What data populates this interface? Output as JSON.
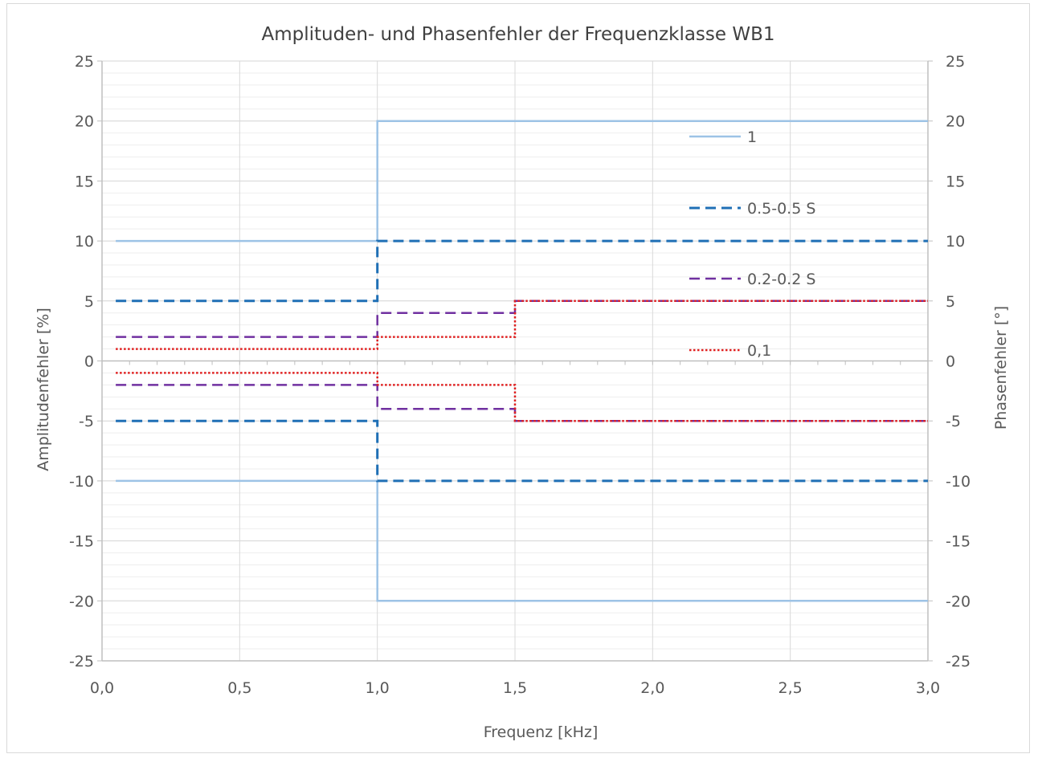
{
  "chart_data": {
    "type": "line",
    "title": "Amplituden- und Phasenfehler der Frequenzklasse WB1",
    "xlabel": "Frequenz [kHz]",
    "ylabel": "Amplitudenfehler [%]",
    "ylabel_right": "Phasenfehler [°]",
    "xlim": [
      0,
      3
    ],
    "ylim": [
      -25,
      25
    ],
    "ylim_right": [
      -25,
      25
    ],
    "x_ticks": [
      "0,0",
      "0,5",
      "1,0",
      "1,5",
      "2,0",
      "2,5",
      "3,0"
    ],
    "y_ticks": [
      "25",
      "20",
      "15",
      "10",
      "5",
      "0",
      "-5",
      "-10",
      "-15",
      "-20",
      "-25"
    ],
    "grid": true,
    "legend_position": "right",
    "series": [
      {
        "name": "1",
        "color": "#9dc3e6",
        "style": "solid",
        "upper": {
          "x": [
            0.05,
            1.0,
            1.0,
            3.0
          ],
          "y": [
            10,
            10,
            20,
            20
          ]
        },
        "lower": {
          "x": [
            0.05,
            1.0,
            1.0,
            3.0
          ],
          "y": [
            -10,
            -10,
            -20,
            -20
          ]
        }
      },
      {
        "name": "0.5-0.5 S",
        "color": "#1f6fb5",
        "style": "dashed",
        "upper": {
          "x": [
            0.05,
            1.0,
            1.0,
            3.0
          ],
          "y": [
            5,
            5,
            10,
            10
          ]
        },
        "lower": {
          "x": [
            0.05,
            1.0,
            1.0,
            3.0
          ],
          "y": [
            -5,
            -5,
            -10,
            -10
          ]
        }
      },
      {
        "name": "0.2-0.2 S",
        "color": "#7030a0",
        "style": "dashed",
        "upper": {
          "x": [
            0.05,
            1.0,
            1.0,
            1.5,
            1.5,
            3.0
          ],
          "y": [
            2,
            2,
            4,
            4,
            5,
            5
          ]
        },
        "lower": {
          "x": [
            0.05,
            1.0,
            1.0,
            1.5,
            1.5,
            3.0
          ],
          "y": [
            -2,
            -2,
            -4,
            -4,
            -5,
            -5
          ]
        }
      },
      {
        "name": "0,1",
        "color": "#e02020",
        "style": "dotted",
        "upper": {
          "x": [
            0.05,
            1.0,
            1.0,
            1.5,
            1.5,
            3.0
          ],
          "y": [
            1,
            1,
            2,
            2,
            5,
            5
          ]
        },
        "lower": {
          "x": [
            0.05,
            1.0,
            1.0,
            1.5,
            1.5,
            3.0
          ],
          "y": [
            -1,
            -1,
            -2,
            -2,
            -5,
            -5
          ]
        }
      }
    ]
  }
}
